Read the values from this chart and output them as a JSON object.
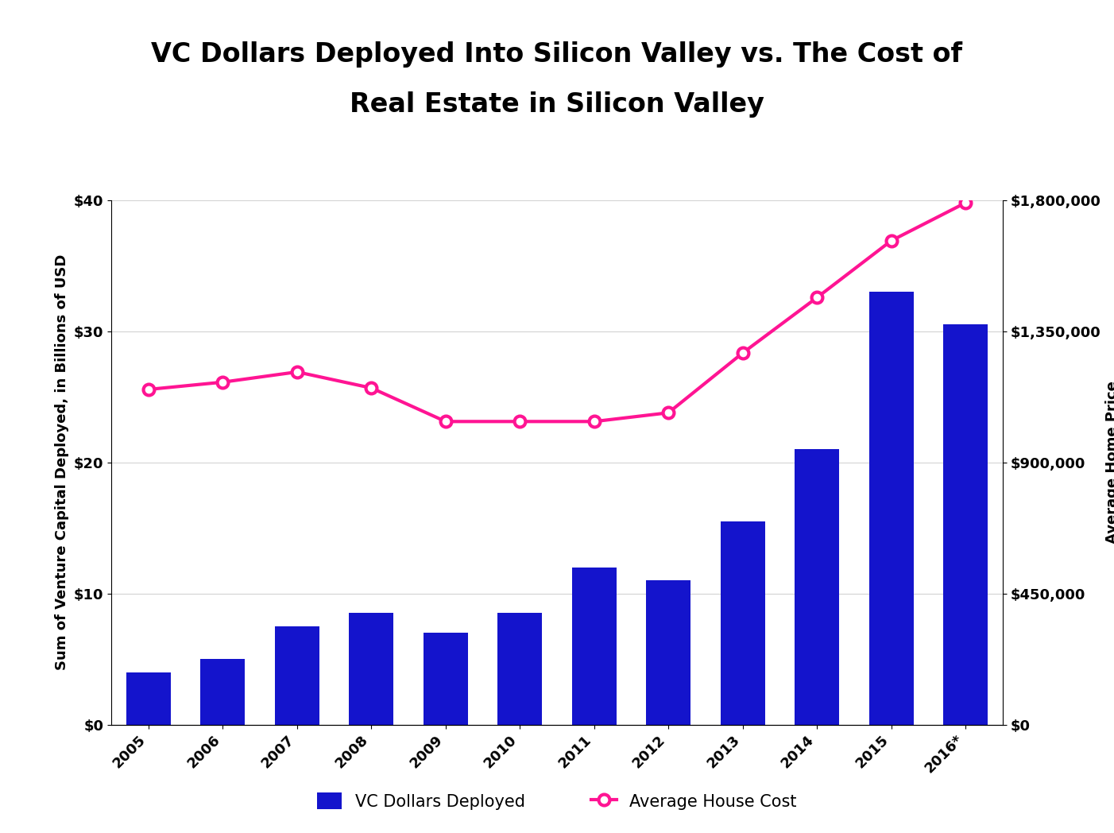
{
  "years": [
    "2005",
    "2006",
    "2007",
    "2008",
    "2009",
    "2010",
    "2011",
    "2012",
    "2013",
    "2014",
    "2015",
    "2016*"
  ],
  "vc_dollars": [
    4.0,
    5.0,
    7.5,
    8.5,
    7.0,
    8.5,
    12.0,
    11.0,
    15.5,
    21.0,
    33.0,
    30.5
  ],
  "home_prices": [
    1150000,
    1175000,
    1210000,
    1155000,
    1040000,
    1040000,
    1040000,
    1070000,
    1275000,
    1465000,
    1660000,
    1790000
  ],
  "bar_color": "#1414CC",
  "line_color": "#FF1493",
  "title_line1": "VC Dollars Deployed Into Silicon Valley vs. The Cost of",
  "title_line2": "Real Estate in Silicon Valley",
  "ylabel_left": "Sum of Venture Capital Deployed, in Billions of USD",
  "ylabel_right": "Average Home Price",
  "ylim_left": [
    0,
    40
  ],
  "ylim_right": [
    0,
    1800000
  ],
  "yticks_left": [
    0,
    10,
    20,
    30,
    40
  ],
  "yticks_right": [
    0,
    450000,
    900000,
    1350000,
    1800000
  ],
  "ytick_labels_left": [
    "$0",
    "$10",
    "$20",
    "$30",
    "$40"
  ],
  "ytick_labels_right": [
    "$0",
    "$450,000",
    "$900,000",
    "$1,350,000",
    "$1,800,000"
  ],
  "legend_vc": "VC Dollars Deployed",
  "legend_home": "Average House Cost",
  "background_color": "#ffffff",
  "title_fontsize": 24,
  "axis_fontsize": 13,
  "tick_fontsize": 13,
  "legend_fontsize": 15
}
